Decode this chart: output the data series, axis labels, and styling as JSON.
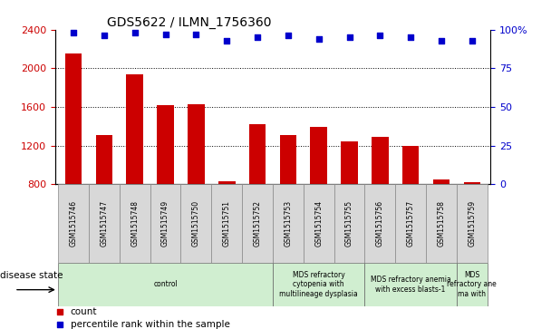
{
  "title": "GDS5622 / ILMN_1756360",
  "samples": [
    "GSM1515746",
    "GSM1515747",
    "GSM1515748",
    "GSM1515749",
    "GSM1515750",
    "GSM1515751",
    "GSM1515752",
    "GSM1515753",
    "GSM1515754",
    "GSM1515755",
    "GSM1515756",
    "GSM1515757",
    "GSM1515758",
    "GSM1515759"
  ],
  "counts": [
    2150,
    1310,
    1940,
    1620,
    1630,
    830,
    1420,
    1310,
    1390,
    1240,
    1290,
    1200,
    850,
    820
  ],
  "percentile_ranks": [
    98,
    96,
    98,
    97,
    97,
    93,
    95,
    96,
    94,
    95,
    96,
    95,
    93,
    93
  ],
  "bar_color": "#cc0000",
  "dot_color": "#0000cc",
  "ylim_left": [
    800,
    2400
  ],
  "ylim_right": [
    0,
    100
  ],
  "yticks_left": [
    800,
    1200,
    1600,
    2000,
    2400
  ],
  "yticks_right": [
    0,
    25,
    50,
    75,
    100
  ],
  "yright_labels": [
    "0",
    "25",
    "50",
    "75",
    "100%"
  ],
  "grid_lines": [
    1200,
    1600,
    2000
  ],
  "disease_groups": [
    {
      "label": "control",
      "start": 0,
      "end": 7
    },
    {
      "label": "MDS refractory\ncytopenia with\nmultilineage dysplasia",
      "start": 7,
      "end": 10
    },
    {
      "label": "MDS refractory anemia\nwith excess blasts-1",
      "start": 10,
      "end": 13
    },
    {
      "label": "MDS\nrefractory ane\nma with",
      "start": 13,
      "end": 14
    }
  ],
  "disease_state_label": "disease state",
  "legend_count_label": "count",
  "legend_pct_label": "percentile rank within the sample",
  "sample_box_color": "#d8d8d8",
  "disease_box_color": "#d0eed0",
  "title_fontsize": 10,
  "bar_width": 0.55
}
